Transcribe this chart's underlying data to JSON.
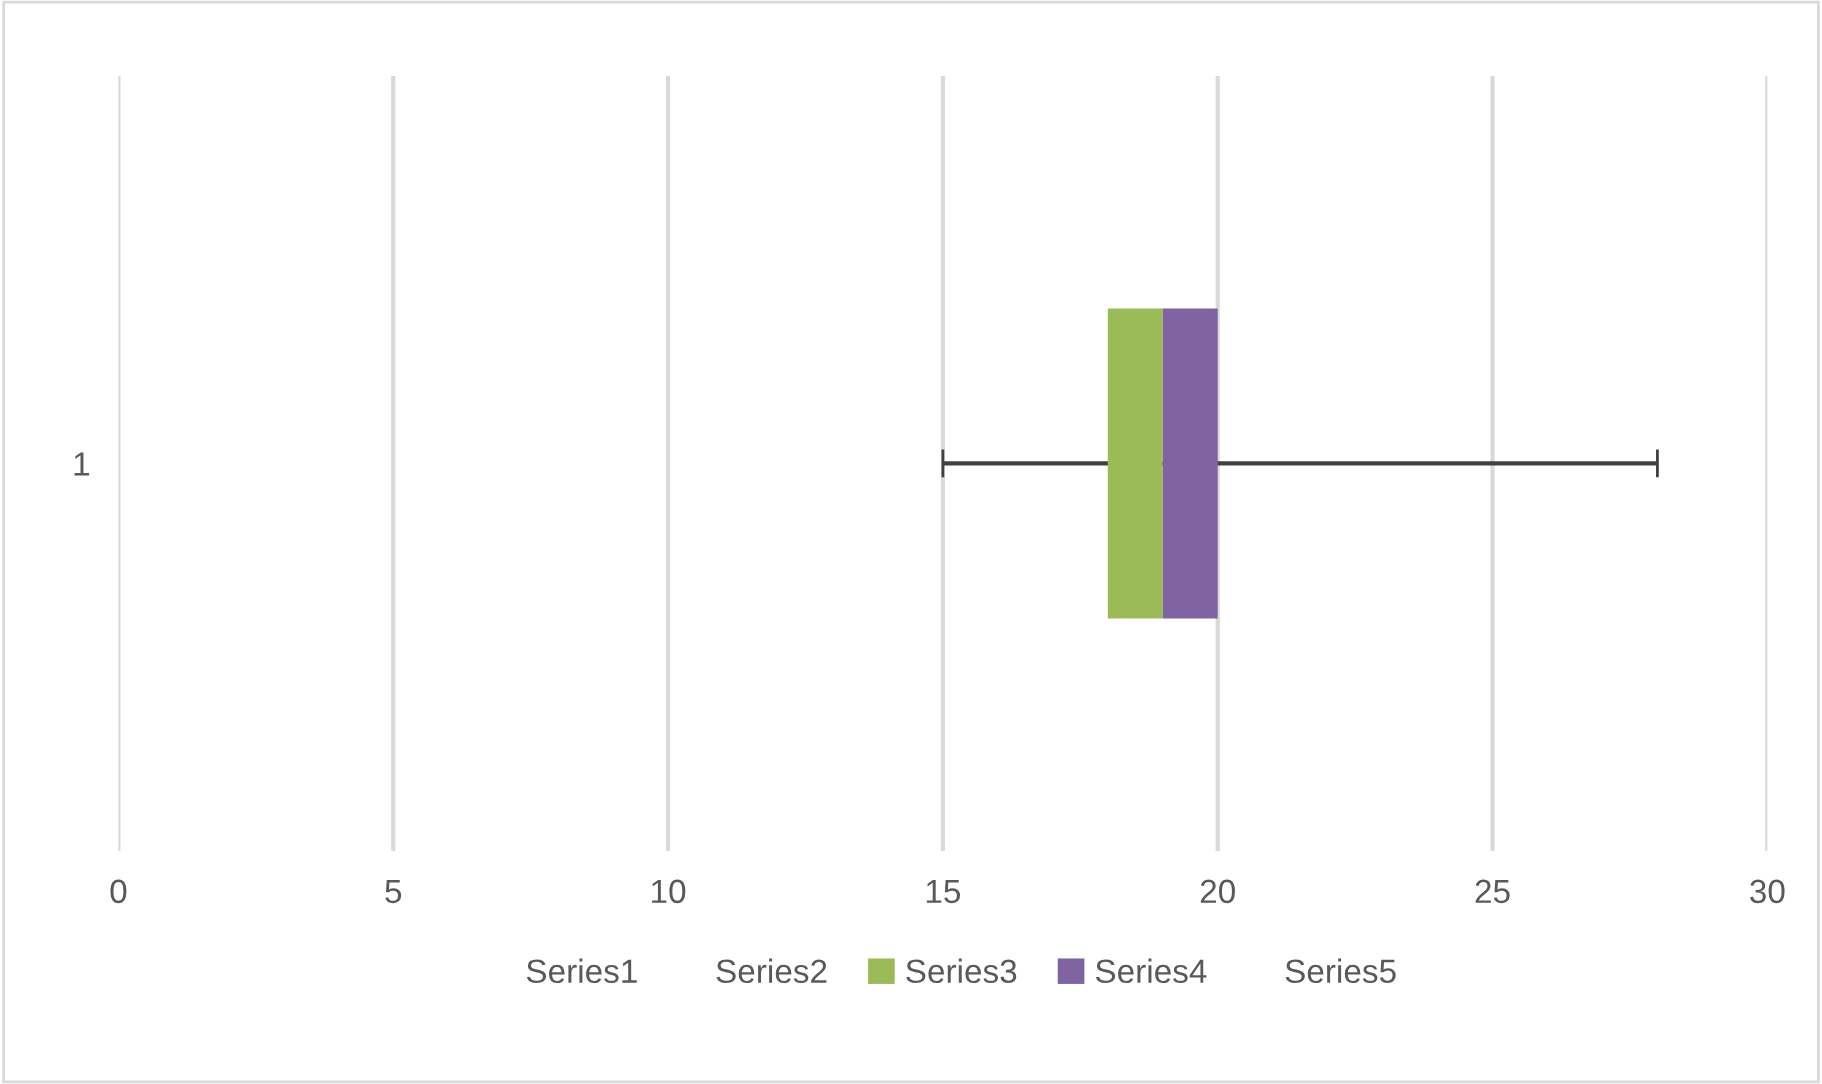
{
  "chart_data": {
    "type": "bar",
    "orientation": "horizontal",
    "categories": [
      "1"
    ],
    "series": [
      {
        "name": "Series1",
        "color": null,
        "values": [
          null
        ]
      },
      {
        "name": "Series2",
        "color": null,
        "values": [
          null
        ]
      },
      {
        "name": "Series3",
        "color": "#9bbb59",
        "values": [
          1
        ],
        "base": [
          18
        ]
      },
      {
        "name": "Series4",
        "color": "#8064a2",
        "values": [
          1
        ],
        "base": [
          19
        ],
        "errors": [
          [
            15,
            28
          ]
        ]
      },
      {
        "name": "Series5",
        "color": null,
        "values": [
          null
        ]
      }
    ],
    "xlim": [
      0,
      30
    ],
    "xticks": [
      0,
      5,
      10,
      15,
      20,
      25,
      30
    ],
    "grid": "x",
    "legend": "bottom"
  }
}
